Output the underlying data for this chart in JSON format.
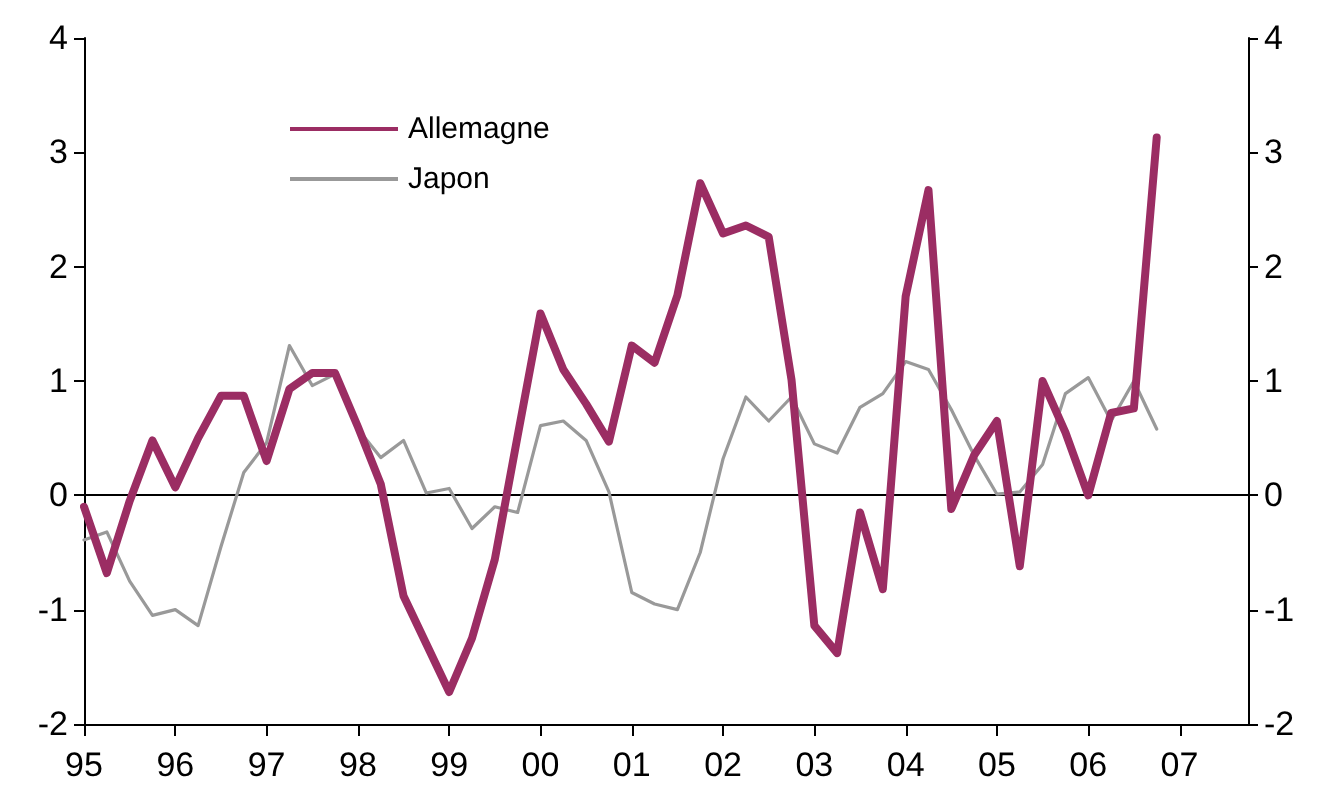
{
  "chart_data": {
    "type": "line",
    "x": [
      1995,
      1995.25,
      1995.5,
      1995.75,
      1996,
      1996.25,
      1996.5,
      1996.75,
      1997,
      1997.25,
      1997.5,
      1997.75,
      1998,
      1998.25,
      1998.5,
      1998.75,
      1999,
      1999.25,
      1999.5,
      1999.75,
      2000,
      2000.25,
      2000.5,
      2000.75,
      2001,
      2001.25,
      2001.5,
      2001.75,
      2002,
      2002.25,
      2002.5,
      2002.75,
      2003,
      2003.25,
      2003.5,
      2003.75,
      2004,
      2004.25,
      2004.5,
      2004.75,
      2005,
      2005.25,
      2005.5,
      2005.75,
      2006,
      2006.25,
      2006.5,
      2006.75
    ],
    "series": [
      {
        "name": "Allemagne",
        "color": "#9b2d63",
        "values": [
          -0.1,
          -0.68,
          -0.05,
          0.48,
          0.07,
          0.5,
          0.87,
          0.87,
          0.3,
          0.93,
          1.07,
          1.07,
          0.6,
          0.1,
          -0.88,
          -1.3,
          -1.72,
          -1.25,
          -0.56,
          0.52,
          1.59,
          1.1,
          0.8,
          0.47,
          1.31,
          1.16,
          1.75,
          2.73,
          2.29,
          2.36,
          2.26,
          1.01,
          -1.14,
          -1.38,
          -0.15,
          -0.82,
          1.74,
          2.67,
          -0.12,
          0.35,
          0.65,
          -0.62,
          1.0,
          0.55,
          0.0,
          0.72,
          0.76,
          3.13
        ]
      },
      {
        "name": "Japon",
        "color": "#999999",
        "values": [
          -0.39,
          -0.32,
          -0.75,
          -1.05,
          -1.0,
          -1.14,
          -0.45,
          0.2,
          0.46,
          1.31,
          0.96,
          1.06,
          0.58,
          0.33,
          0.48,
          0.02,
          0.06,
          -0.29,
          -0.1,
          -0.15,
          0.61,
          0.65,
          0.48,
          0.03,
          -0.85,
          -0.95,
          -1.0,
          -0.5,
          0.32,
          0.86,
          0.65,
          0.86,
          0.45,
          0.37,
          0.77,
          0.89,
          1.17,
          1.1,
          0.75,
          0.35,
          0.01,
          0.03,
          0.27,
          0.89,
          1.03,
          0.65,
          1.0,
          0.58
        ]
      }
    ],
    "xlim": [
      1995,
      2007.75
    ],
    "xticks": [
      {
        "value": 1995,
        "label": "95"
      },
      {
        "value": 1996,
        "label": "96"
      },
      {
        "value": 1997,
        "label": "97"
      },
      {
        "value": 1998,
        "label": "98"
      },
      {
        "value": 1999,
        "label": "99"
      },
      {
        "value": 2000,
        "label": "00"
      },
      {
        "value": 2001,
        "label": "01"
      },
      {
        "value": 2002,
        "label": "02"
      },
      {
        "value": 2003,
        "label": "03"
      },
      {
        "value": 2004,
        "label": "04"
      },
      {
        "value": 2005,
        "label": "05"
      },
      {
        "value": 2006,
        "label": "06"
      },
      {
        "value": 2007,
        "label": "07"
      }
    ],
    "ylim": [
      -2,
      4
    ],
    "yticks": [
      -2,
      -1,
      0,
      1,
      2,
      3,
      4
    ],
    "y2lim": [
      -2,
      4
    ],
    "y2ticks": [
      -2,
      -1,
      0,
      1,
      2,
      3,
      4
    ],
    "ref_lines": [
      {
        "axis": "y",
        "value": 0,
        "color": "#000000"
      }
    ],
    "legend": "top left",
    "grid": false,
    "marker": "none",
    "line_style": "solid"
  }
}
